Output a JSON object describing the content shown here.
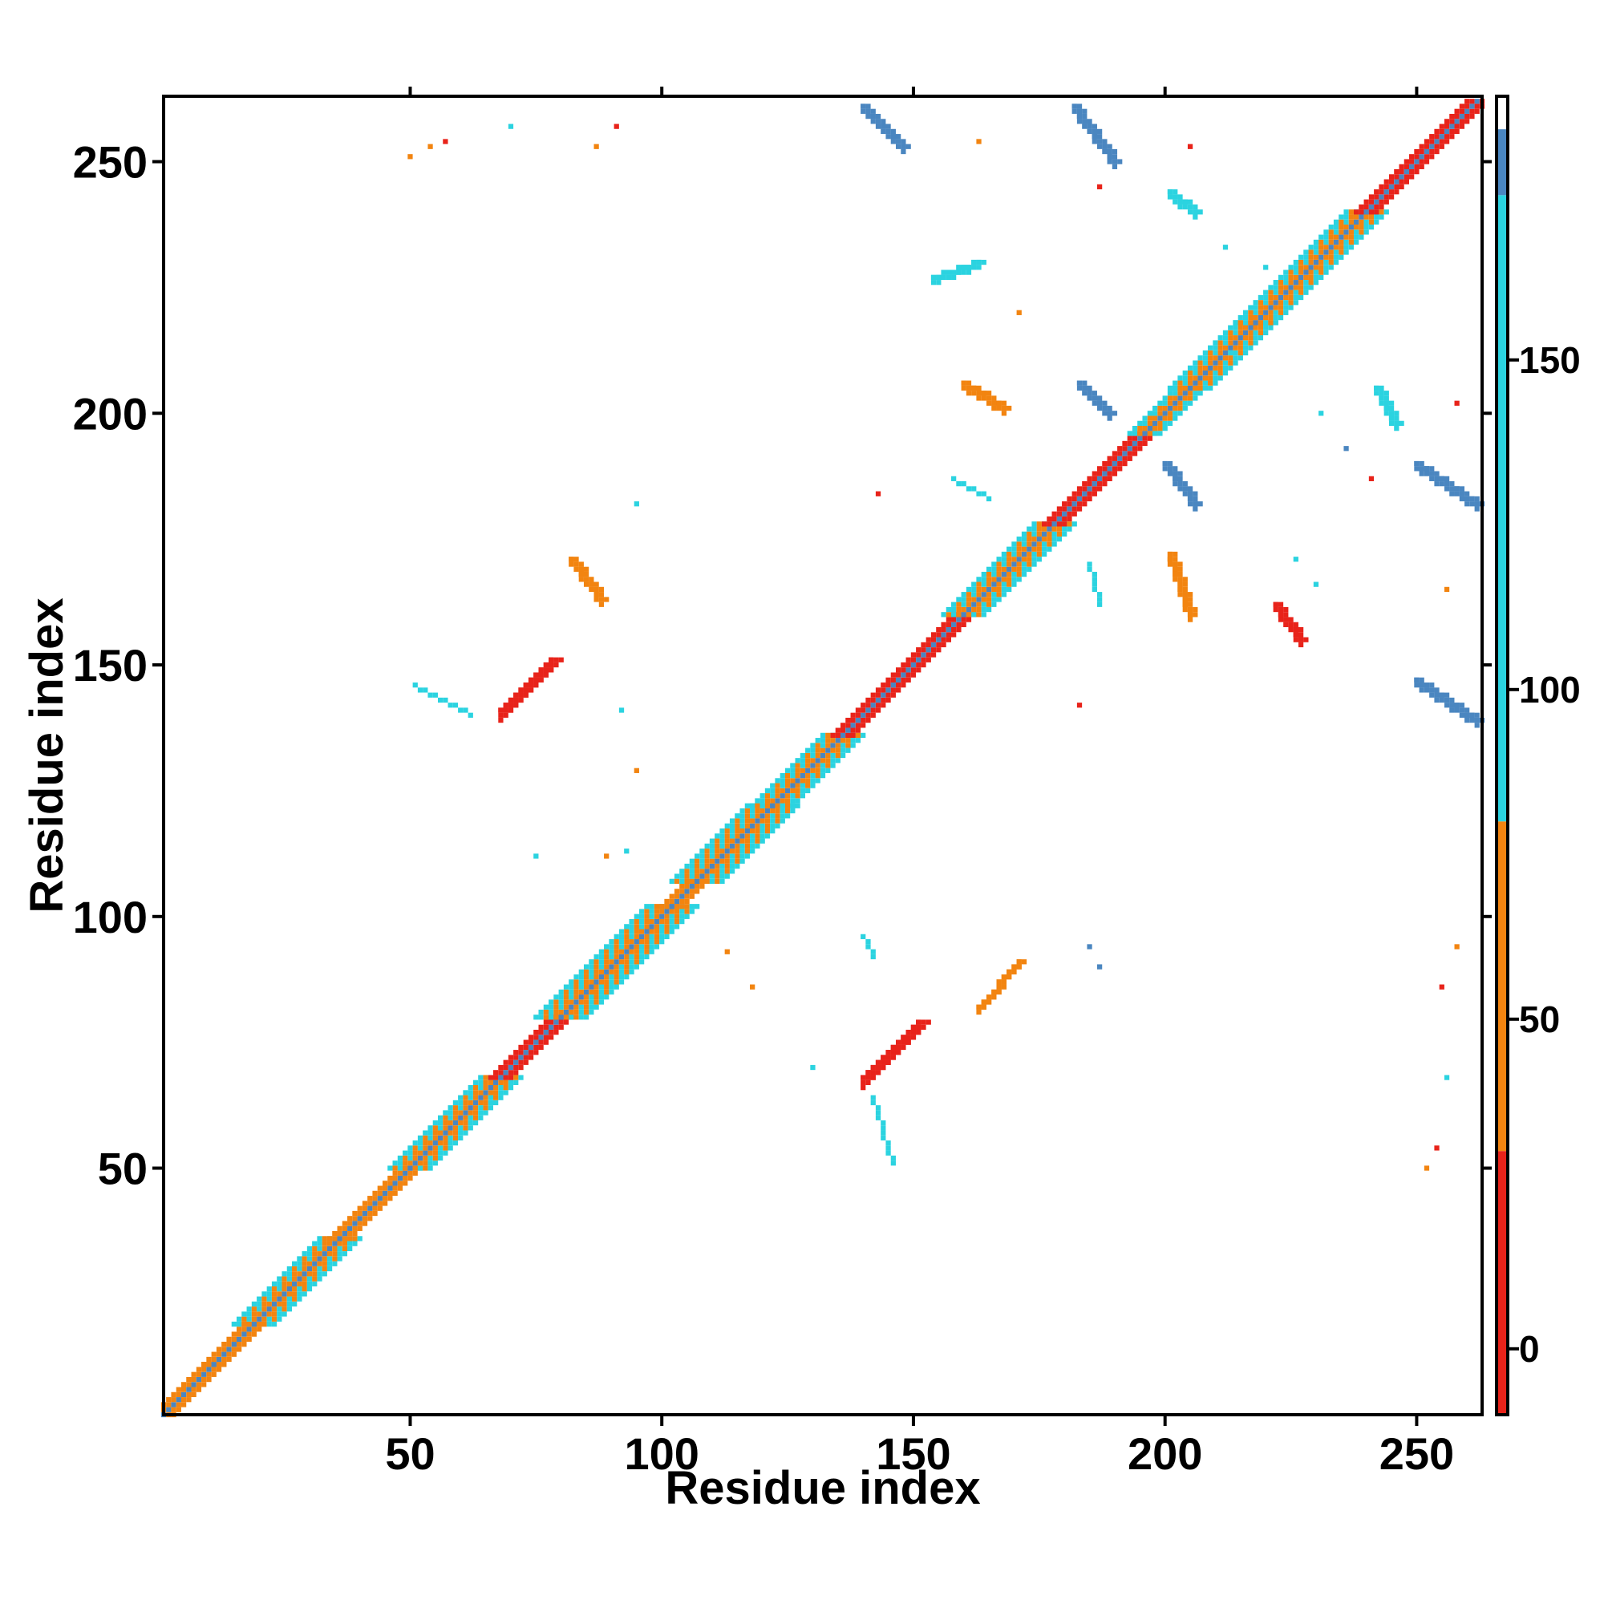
{
  "chart_data": {
    "type": "heatmap",
    "title": "",
    "xlabel": "Residue index",
    "ylabel": "Residue index",
    "xlim": [
      1,
      263
    ],
    "ylim": [
      1,
      263
    ],
    "x_ticks": [
      50,
      100,
      150,
      200,
      250
    ],
    "y_ticks": [
      50,
      100,
      150,
      200,
      250
    ],
    "colorbar": {
      "range": [
        -10,
        190
      ],
      "ticks": [
        0,
        50,
        100,
        150
      ],
      "stops": [
        {
          "from": -10,
          "to": 30,
          "color": "#e8231a"
        },
        {
          "from": 30,
          "to": 80,
          "color": "#f28410"
        },
        {
          "from": 80,
          "to": 175,
          "color": "#2bd3e0"
        },
        {
          "from": 175,
          "to": 185,
          "color": "#4a86c0"
        },
        {
          "from": 185,
          "to": 190,
          "color": "#ffffff"
        }
      ]
    },
    "colors": {
      "red": "#e8231a",
      "orange": "#f28410",
      "cyan": "#2bd3e0",
      "steel": "#4a86c0"
    },
    "diagonal_segments": [
      {
        "from": 1,
        "to": 11,
        "value": 60,
        "width": 2
      },
      {
        "from": 11,
        "to": 19,
        "value": 60,
        "width": 2
      },
      {
        "from": 19,
        "to": 36,
        "value": 95,
        "width": 4
      },
      {
        "from": 36,
        "to": 50,
        "value": 50,
        "width": 2
      },
      {
        "from": 50,
        "to": 68,
        "value": 95,
        "width": 4
      },
      {
        "from": 68,
        "to": 80,
        "value": 20,
        "width": 2
      },
      {
        "from": 80,
        "to": 102,
        "value": 95,
        "width": 5
      },
      {
        "from": 102,
        "to": 107,
        "value": 60,
        "width": 2
      },
      {
        "from": 107,
        "to": 122,
        "value": 95,
        "width": 5
      },
      {
        "from": 122,
        "to": 136,
        "value": 95,
        "width": 4
      },
      {
        "from": 136,
        "to": 160,
        "value": 15,
        "width": 2
      },
      {
        "from": 160,
        "to": 178,
        "value": 95,
        "width": 4
      },
      {
        "from": 178,
        "to": 196,
        "value": 15,
        "width": 2
      },
      {
        "from": 196,
        "to": 205,
        "value": 95,
        "width": 3
      },
      {
        "from": 205,
        "to": 218,
        "value": 95,
        "width": 4
      },
      {
        "from": 218,
        "to": 240,
        "value": 95,
        "width": 4
      },
      {
        "from": 240,
        "to": 262,
        "value": 15,
        "width": 2
      }
    ],
    "off_diagonal_contacts": [
      {
        "x1": 140,
        "y1": 261,
        "x2": 148,
        "y2": 253,
        "value": 180,
        "width": 2
      },
      {
        "x1": 182,
        "y1": 261,
        "x2": 190,
        "y2": 250,
        "value": 180,
        "width": 2
      },
      {
        "x1": 201,
        "y1": 244,
        "x2": 206,
        "y2": 240,
        "value": 100,
        "width": 2
      },
      {
        "x1": 154,
        "y1": 227,
        "x2": 163,
        "y2": 230,
        "value": 100,
        "width": 2
      },
      {
        "x1": 183,
        "y1": 206,
        "x2": 189,
        "y2": 200,
        "value": 180,
        "width": 2
      },
      {
        "x1": 242,
        "y1": 205,
        "x2": 246,
        "y2": 198,
        "value": 100,
        "width": 2
      },
      {
        "x1": 200,
        "y1": 190,
        "x2": 206,
        "y2": 182,
        "value": 180,
        "width": 2
      },
      {
        "x1": 250,
        "y1": 190,
        "x2": 262,
        "y2": 182,
        "value": 180,
        "width": 2
      },
      {
        "x1": 250,
        "y1": 147,
        "x2": 262,
        "y2": 139,
        "value": 180,
        "width": 2
      },
      {
        "x1": 160,
        "y1": 206,
        "x2": 168,
        "y2": 201,
        "value": 60,
        "width": 2
      },
      {
        "x1": 201,
        "y1": 172,
        "x2": 205,
        "y2": 160,
        "value": 60,
        "width": 2
      },
      {
        "x1": 222,
        "y1": 162,
        "x2": 227,
        "y2": 155,
        "value": 20,
        "width": 2
      },
      {
        "x1": 82,
        "y1": 171,
        "x2": 88,
        "y2": 163,
        "value": 60,
        "width": 2
      },
      {
        "x1": 68,
        "y1": 141,
        "x2": 78,
        "y2": 151,
        "value": 10,
        "width": 3
      },
      {
        "x1": 140,
        "y1": 68,
        "x2": 151,
        "y2": 79,
        "value": 10,
        "width": 3
      },
      {
        "x1": 163,
        "y1": 82,
        "x2": 171,
        "y2": 91,
        "value": 60,
        "width": 2
      },
      {
        "x1": 51,
        "y1": 146,
        "x2": 62,
        "y2": 140,
        "value": 100,
        "width": 1
      },
      {
        "x1": 142,
        "y1": 64,
        "x2": 146,
        "y2": 51,
        "value": 100,
        "width": 1
      },
      {
        "x1": 158,
        "y1": 187,
        "x2": 165,
        "y2": 183,
        "value": 100,
        "width": 1
      },
      {
        "x1": 185,
        "y1": 170,
        "x2": 187,
        "y2": 162,
        "value": 100,
        "width": 1
      },
      {
        "x1": 140,
        "y1": 96,
        "x2": 142,
        "y2": 92,
        "value": 100,
        "width": 1
      }
    ],
    "sparse_contacts": [
      {
        "x": 50,
        "y": 251,
        "value": 60
      },
      {
        "x": 54,
        "y": 253,
        "value": 60
      },
      {
        "x": 57,
        "y": 254,
        "value": 20
      },
      {
        "x": 70,
        "y": 257,
        "value": 100
      },
      {
        "x": 87,
        "y": 253,
        "value": 60
      },
      {
        "x": 91,
        "y": 257,
        "value": 20
      },
      {
        "x": 163,
        "y": 254,
        "value": 60
      },
      {
        "x": 205,
        "y": 253,
        "value": 20
      },
      {
        "x": 187,
        "y": 245,
        "value": 10
      },
      {
        "x": 171,
        "y": 220,
        "value": 60
      },
      {
        "x": 241,
        "y": 187,
        "value": 10
      },
      {
        "x": 258,
        "y": 202,
        "value": 10
      },
      {
        "x": 143,
        "y": 184,
        "value": 10
      },
      {
        "x": 95,
        "y": 182,
        "value": 100
      },
      {
        "x": 92,
        "y": 141,
        "value": 100
      },
      {
        "x": 95,
        "y": 129,
        "value": 60
      },
      {
        "x": 89,
        "y": 112,
        "value": 60
      },
      {
        "x": 93,
        "y": 113,
        "value": 100
      },
      {
        "x": 130,
        "y": 70,
        "value": 100
      },
      {
        "x": 113,
        "y": 93,
        "value": 60
      },
      {
        "x": 118,
        "y": 86,
        "value": 60
      },
      {
        "x": 75,
        "y": 112,
        "value": 100
      },
      {
        "x": 185,
        "y": 94,
        "value": 180
      },
      {
        "x": 187,
        "y": 90,
        "value": 180
      },
      {
        "x": 255,
        "y": 86,
        "value": 10
      },
      {
        "x": 258,
        "y": 94,
        "value": 60
      },
      {
        "x": 256,
        "y": 68,
        "value": 100
      },
      {
        "x": 254,
        "y": 54,
        "value": 10
      },
      {
        "x": 252,
        "y": 50,
        "value": 60
      },
      {
        "x": 183,
        "y": 142,
        "value": 10
      },
      {
        "x": 256,
        "y": 165,
        "value": 60
      },
      {
        "x": 226,
        "y": 171,
        "value": 100
      },
      {
        "x": 230,
        "y": 166,
        "value": 100
      },
      {
        "x": 236,
        "y": 193,
        "value": 180
      },
      {
        "x": 231,
        "y": 200,
        "value": 100
      },
      {
        "x": 213,
        "y": 212,
        "value": 100
      },
      {
        "x": 220,
        "y": 229,
        "value": 100
      },
      {
        "x": 212,
        "y": 233,
        "value": 100
      }
    ]
  }
}
